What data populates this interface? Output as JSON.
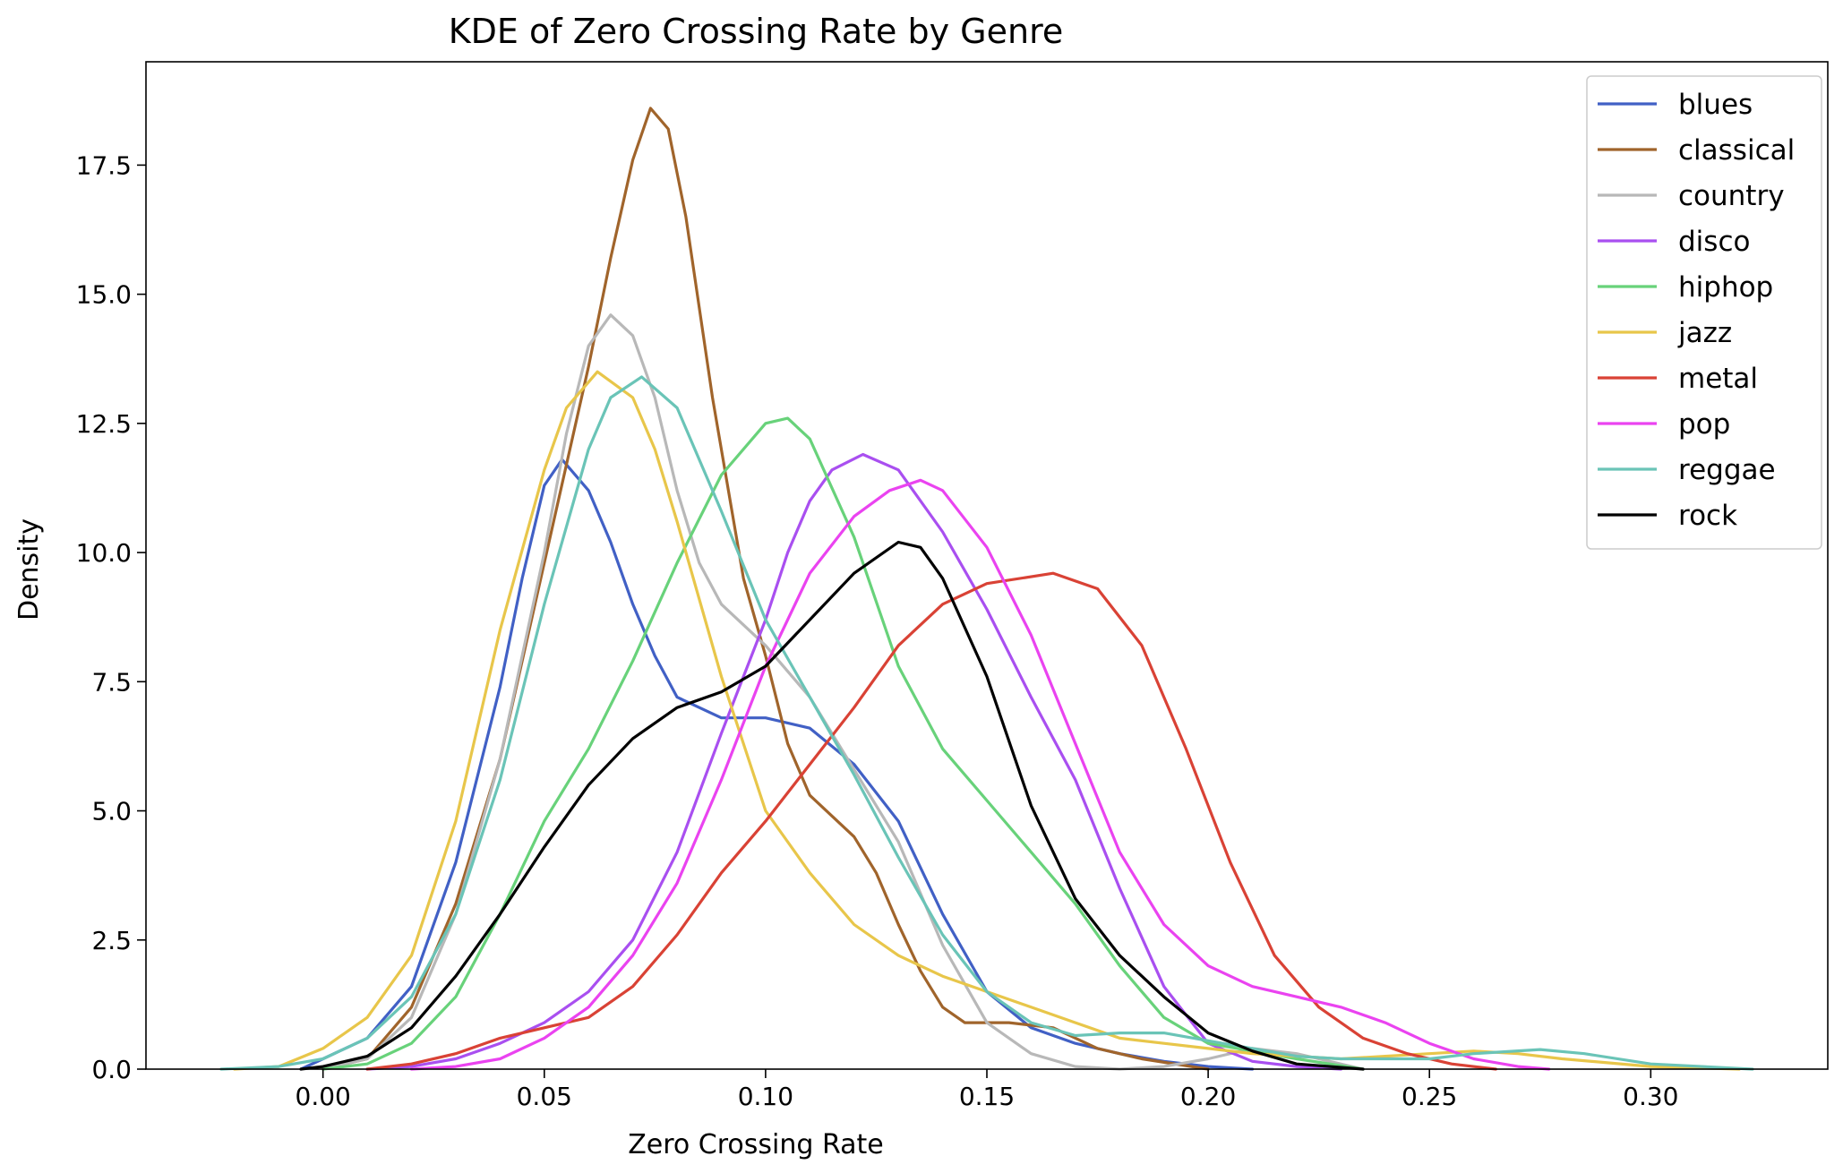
{
  "chart_data": {
    "type": "line",
    "title": "KDE of Zero Crossing Rate by Genre",
    "xlabel": "Zero Crossing Rate",
    "ylabel": "Density",
    "xlim": [
      -0.04,
      0.34
    ],
    "ylim": [
      0.0,
      19.5
    ],
    "xticks": [
      0.0,
      0.05,
      0.1,
      0.15,
      0.2,
      0.25,
      0.3
    ],
    "xtick_labels": [
      "0.00",
      "0.05",
      "0.10",
      "0.15",
      "0.20",
      "0.25",
      "0.30"
    ],
    "yticks": [
      0.0,
      2.5,
      5.0,
      7.5,
      10.0,
      12.5,
      15.0,
      17.5
    ],
    "ytick_labels": [
      "0.0",
      "2.5",
      "5.0",
      "7.5",
      "10.0",
      "12.5",
      "15.0",
      "17.5"
    ],
    "grid": false,
    "legend_position": "top-right",
    "series": [
      {
        "name": "blues",
        "color": "#4160c5",
        "points": [
          [
            -0.005,
            0.0
          ],
          [
            0.0,
            0.2
          ],
          [
            0.01,
            0.6
          ],
          [
            0.02,
            1.6
          ],
          [
            0.03,
            4.0
          ],
          [
            0.04,
            7.4
          ],
          [
            0.045,
            9.5
          ],
          [
            0.05,
            11.3
          ],
          [
            0.054,
            11.8
          ],
          [
            0.06,
            11.2
          ],
          [
            0.065,
            10.2
          ],
          [
            0.07,
            9.0
          ],
          [
            0.075,
            8.0
          ],
          [
            0.08,
            7.2
          ],
          [
            0.09,
            6.8
          ],
          [
            0.1,
            6.8
          ],
          [
            0.11,
            6.6
          ],
          [
            0.12,
            5.9
          ],
          [
            0.13,
            4.8
          ],
          [
            0.14,
            3.0
          ],
          [
            0.15,
            1.5
          ],
          [
            0.16,
            0.8
          ],
          [
            0.17,
            0.5
          ],
          [
            0.18,
            0.3
          ],
          [
            0.19,
            0.15
          ],
          [
            0.2,
            0.05
          ],
          [
            0.21,
            0.0
          ]
        ]
      },
      {
        "name": "classical",
        "color": "#a0642b",
        "points": [
          [
            0.0,
            0.0
          ],
          [
            0.01,
            0.2
          ],
          [
            0.02,
            1.2
          ],
          [
            0.03,
            3.2
          ],
          [
            0.04,
            6.0
          ],
          [
            0.05,
            9.8
          ],
          [
            0.06,
            13.6
          ],
          [
            0.065,
            15.7
          ],
          [
            0.07,
            17.6
          ],
          [
            0.074,
            18.6
          ],
          [
            0.078,
            18.2
          ],
          [
            0.082,
            16.5
          ],
          [
            0.088,
            13.0
          ],
          [
            0.095,
            9.5
          ],
          [
            0.1,
            8.0
          ],
          [
            0.105,
            6.3
          ],
          [
            0.11,
            5.3
          ],
          [
            0.12,
            4.5
          ],
          [
            0.125,
            3.8
          ],
          [
            0.13,
            2.8
          ],
          [
            0.135,
            1.9
          ],
          [
            0.14,
            1.2
          ],
          [
            0.145,
            0.9
          ],
          [
            0.155,
            0.9
          ],
          [
            0.165,
            0.8
          ],
          [
            0.175,
            0.4
          ],
          [
            0.185,
            0.2
          ],
          [
            0.2,
            0.0
          ]
        ]
      },
      {
        "name": "country",
        "color": "#b8b8b8",
        "points": [
          [
            0.0,
            0.0
          ],
          [
            0.01,
            0.2
          ],
          [
            0.02,
            1.0
          ],
          [
            0.03,
            3.0
          ],
          [
            0.04,
            6.0
          ],
          [
            0.05,
            10.0
          ],
          [
            0.055,
            12.3
          ],
          [
            0.06,
            14.0
          ],
          [
            0.065,
            14.6
          ],
          [
            0.07,
            14.2
          ],
          [
            0.075,
            13.0
          ],
          [
            0.08,
            11.2
          ],
          [
            0.085,
            9.8
          ],
          [
            0.09,
            9.0
          ],
          [
            0.1,
            8.2
          ],
          [
            0.11,
            7.2
          ],
          [
            0.12,
            5.8
          ],
          [
            0.13,
            4.4
          ],
          [
            0.14,
            2.4
          ],
          [
            0.15,
            0.9
          ],
          [
            0.16,
            0.3
          ],
          [
            0.17,
            0.05
          ],
          [
            0.18,
            0.0
          ],
          [
            0.19,
            0.05
          ],
          [
            0.2,
            0.2
          ],
          [
            0.21,
            0.4
          ],
          [
            0.22,
            0.3
          ],
          [
            0.235,
            0.0
          ]
        ]
      },
      {
        "name": "disco",
        "color": "#a94ff0",
        "points": [
          [
            0.01,
            0.0
          ],
          [
            0.02,
            0.05
          ],
          [
            0.03,
            0.2
          ],
          [
            0.04,
            0.5
          ],
          [
            0.05,
            0.9
          ],
          [
            0.06,
            1.5
          ],
          [
            0.07,
            2.5
          ],
          [
            0.08,
            4.2
          ],
          [
            0.09,
            6.5
          ],
          [
            0.1,
            8.7
          ],
          [
            0.105,
            10.0
          ],
          [
            0.11,
            11.0
          ],
          [
            0.115,
            11.6
          ],
          [
            0.122,
            11.9
          ],
          [
            0.13,
            11.6
          ],
          [
            0.14,
            10.4
          ],
          [
            0.15,
            8.9
          ],
          [
            0.16,
            7.2
          ],
          [
            0.17,
            5.6
          ],
          [
            0.18,
            3.5
          ],
          [
            0.19,
            1.6
          ],
          [
            0.2,
            0.5
          ],
          [
            0.21,
            0.15
          ],
          [
            0.22,
            0.05
          ],
          [
            0.23,
            0.0
          ]
        ]
      },
      {
        "name": "hiphop",
        "color": "#68d27a",
        "points": [
          [
            0.0,
            0.0
          ],
          [
            0.01,
            0.1
          ],
          [
            0.02,
            0.5
          ],
          [
            0.03,
            1.4
          ],
          [
            0.04,
            3.0
          ],
          [
            0.05,
            4.8
          ],
          [
            0.06,
            6.2
          ],
          [
            0.07,
            7.9
          ],
          [
            0.08,
            9.8
          ],
          [
            0.09,
            11.5
          ],
          [
            0.1,
            12.5
          ],
          [
            0.105,
            12.6
          ],
          [
            0.11,
            12.2
          ],
          [
            0.12,
            10.3
          ],
          [
            0.13,
            7.8
          ],
          [
            0.14,
            6.2
          ],
          [
            0.15,
            5.2
          ],
          [
            0.16,
            4.2
          ],
          [
            0.17,
            3.2
          ],
          [
            0.18,
            2.0
          ],
          [
            0.19,
            1.0
          ],
          [
            0.2,
            0.5
          ],
          [
            0.21,
            0.35
          ],
          [
            0.22,
            0.2
          ],
          [
            0.235,
            0.0
          ]
        ]
      },
      {
        "name": "jazz",
        "color": "#e8c64a",
        "points": [
          [
            -0.02,
            0.0
          ],
          [
            -0.01,
            0.05
          ],
          [
            0.0,
            0.4
          ],
          [
            0.01,
            1.0
          ],
          [
            0.02,
            2.2
          ],
          [
            0.03,
            4.8
          ],
          [
            0.04,
            8.5
          ],
          [
            0.05,
            11.6
          ],
          [
            0.055,
            12.8
          ],
          [
            0.062,
            13.5
          ],
          [
            0.07,
            13.0
          ],
          [
            0.075,
            12.0
          ],
          [
            0.08,
            10.6
          ],
          [
            0.09,
            7.6
          ],
          [
            0.1,
            5.0
          ],
          [
            0.11,
            3.8
          ],
          [
            0.12,
            2.8
          ],
          [
            0.13,
            2.2
          ],
          [
            0.14,
            1.8
          ],
          [
            0.15,
            1.5
          ],
          [
            0.16,
            1.2
          ],
          [
            0.17,
            0.9
          ],
          [
            0.18,
            0.6
          ],
          [
            0.19,
            0.5
          ],
          [
            0.2,
            0.4
          ],
          [
            0.21,
            0.3
          ],
          [
            0.22,
            0.25
          ],
          [
            0.23,
            0.2
          ],
          [
            0.24,
            0.25
          ],
          [
            0.25,
            0.3
          ],
          [
            0.26,
            0.35
          ],
          [
            0.27,
            0.3
          ],
          [
            0.28,
            0.2
          ],
          [
            0.3,
            0.05
          ],
          [
            0.32,
            0.0
          ]
        ]
      },
      {
        "name": "metal",
        "color": "#d94235",
        "points": [
          [
            0.01,
            0.0
          ],
          [
            0.02,
            0.1
          ],
          [
            0.03,
            0.3
          ],
          [
            0.04,
            0.6
          ],
          [
            0.05,
            0.8
          ],
          [
            0.06,
            1.0
          ],
          [
            0.07,
            1.6
          ],
          [
            0.08,
            2.6
          ],
          [
            0.09,
            3.8
          ],
          [
            0.1,
            4.8
          ],
          [
            0.11,
            5.9
          ],
          [
            0.12,
            7.0
          ],
          [
            0.13,
            8.2
          ],
          [
            0.14,
            9.0
          ],
          [
            0.15,
            9.4
          ],
          [
            0.165,
            9.6
          ],
          [
            0.175,
            9.3
          ],
          [
            0.185,
            8.2
          ],
          [
            0.195,
            6.2
          ],
          [
            0.205,
            4.0
          ],
          [
            0.215,
            2.2
          ],
          [
            0.225,
            1.2
          ],
          [
            0.235,
            0.6
          ],
          [
            0.245,
            0.3
          ],
          [
            0.255,
            0.1
          ],
          [
            0.265,
            0.0
          ]
        ]
      },
      {
        "name": "pop",
        "color": "#ea43f0",
        "points": [
          [
            0.02,
            0.0
          ],
          [
            0.03,
            0.05
          ],
          [
            0.04,
            0.2
          ],
          [
            0.05,
            0.6
          ],
          [
            0.06,
            1.2
          ],
          [
            0.07,
            2.2
          ],
          [
            0.08,
            3.6
          ],
          [
            0.09,
            5.6
          ],
          [
            0.1,
            7.8
          ],
          [
            0.11,
            9.6
          ],
          [
            0.12,
            10.7
          ],
          [
            0.128,
            11.2
          ],
          [
            0.135,
            11.4
          ],
          [
            0.14,
            11.2
          ],
          [
            0.15,
            10.1
          ],
          [
            0.16,
            8.4
          ],
          [
            0.17,
            6.3
          ],
          [
            0.18,
            4.2
          ],
          [
            0.19,
            2.8
          ],
          [
            0.2,
            2.0
          ],
          [
            0.21,
            1.6
          ],
          [
            0.22,
            1.4
          ],
          [
            0.23,
            1.2
          ],
          [
            0.24,
            0.9
          ],
          [
            0.25,
            0.5
          ],
          [
            0.26,
            0.2
          ],
          [
            0.27,
            0.05
          ],
          [
            0.277,
            0.0
          ]
        ]
      },
      {
        "name": "reggae",
        "color": "#6ac4b7",
        "points": [
          [
            -0.023,
            0.0
          ],
          [
            -0.01,
            0.05
          ],
          [
            0.0,
            0.2
          ],
          [
            0.01,
            0.6
          ],
          [
            0.02,
            1.4
          ],
          [
            0.03,
            3.0
          ],
          [
            0.04,
            5.6
          ],
          [
            0.05,
            9.0
          ],
          [
            0.06,
            12.0
          ],
          [
            0.065,
            13.0
          ],
          [
            0.072,
            13.4
          ],
          [
            0.08,
            12.8
          ],
          [
            0.09,
            10.8
          ],
          [
            0.1,
            8.7
          ],
          [
            0.11,
            7.2
          ],
          [
            0.12,
            5.7
          ],
          [
            0.13,
            4.1
          ],
          [
            0.14,
            2.6
          ],
          [
            0.15,
            1.5
          ],
          [
            0.16,
            0.9
          ],
          [
            0.17,
            0.65
          ],
          [
            0.18,
            0.7
          ],
          [
            0.19,
            0.7
          ],
          [
            0.2,
            0.55
          ],
          [
            0.21,
            0.4
          ],
          [
            0.22,
            0.25
          ],
          [
            0.23,
            0.2
          ],
          [
            0.24,
            0.2
          ],
          [
            0.25,
            0.2
          ],
          [
            0.26,
            0.3
          ],
          [
            0.275,
            0.38
          ],
          [
            0.285,
            0.3
          ],
          [
            0.3,
            0.1
          ],
          [
            0.323,
            0.0
          ]
        ]
      },
      {
        "name": "rock",
        "color": "#000000",
        "points": [
          [
            -0.005,
            0.0
          ],
          [
            0.0,
            0.05
          ],
          [
            0.01,
            0.25
          ],
          [
            0.02,
            0.8
          ],
          [
            0.03,
            1.8
          ],
          [
            0.04,
            3.0
          ],
          [
            0.05,
            4.3
          ],
          [
            0.06,
            5.5
          ],
          [
            0.07,
            6.4
          ],
          [
            0.08,
            7.0
          ],
          [
            0.09,
            7.3
          ],
          [
            0.1,
            7.8
          ],
          [
            0.11,
            8.7
          ],
          [
            0.12,
            9.6
          ],
          [
            0.13,
            10.2
          ],
          [
            0.135,
            10.1
          ],
          [
            0.14,
            9.5
          ],
          [
            0.15,
            7.6
          ],
          [
            0.16,
            5.1
          ],
          [
            0.17,
            3.3
          ],
          [
            0.18,
            2.2
          ],
          [
            0.19,
            1.4
          ],
          [
            0.2,
            0.7
          ],
          [
            0.21,
            0.35
          ],
          [
            0.22,
            0.1
          ],
          [
            0.235,
            0.0
          ]
        ]
      }
    ]
  }
}
